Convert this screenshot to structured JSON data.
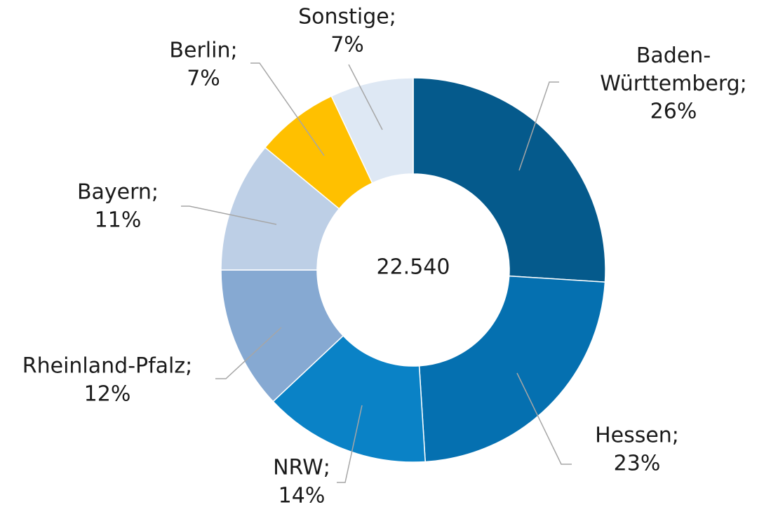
{
  "chart_data": {
    "type": "donut",
    "categories": [
      "Baden-Württemberg;",
      "Hessen;",
      "NRW;",
      "Rheinland-Pfalz;",
      "Bayern;",
      "Berlin;",
      "Sonstige;"
    ],
    "values": [
      26,
      23,
      14,
      12,
      11,
      7,
      7
    ],
    "value_labels": [
      "26%",
      "23%",
      "14%",
      "12%",
      "11%",
      "7%",
      "7%"
    ],
    "colors": [
      "#055a8c",
      "#0570b0",
      "#0a82c6",
      "#86a9d2",
      "#bdcfe6",
      "#ffc000",
      "#dee8f4"
    ],
    "center_text": "22.540"
  }
}
